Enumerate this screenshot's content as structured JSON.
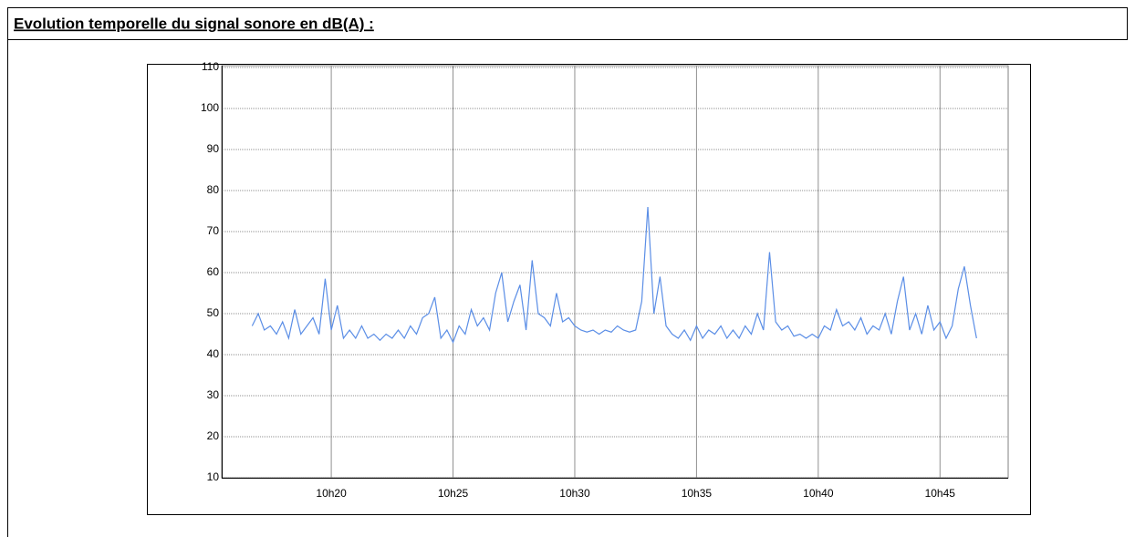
{
  "chart_data": {
    "type": "line",
    "title": "Evolution temporelle du signal sonore en dB(A) :",
    "x": [
      16.75,
      17,
      17.25,
      17.5,
      17.75,
      18,
      18.25,
      18.5,
      18.75,
      19,
      19.25,
      19.5,
      19.75,
      20,
      20.25,
      20.5,
      20.75,
      21,
      21.25,
      21.5,
      21.75,
      22,
      22.25,
      22.5,
      22.75,
      23,
      23.25,
      23.5,
      23.75,
      24,
      24.25,
      24.5,
      24.75,
      25,
      25.25,
      25.5,
      25.75,
      26,
      26.25,
      26.5,
      26.75,
      27,
      27.25,
      27.5,
      27.75,
      28,
      28.25,
      28.5,
      28.75,
      29,
      29.25,
      29.5,
      29.75,
      30,
      30.25,
      30.5,
      30.75,
      31,
      31.25,
      31.5,
      31.75,
      32,
      32.25,
      32.5,
      32.75,
      33,
      33.25,
      33.5,
      33.75,
      34,
      34.25,
      34.5,
      34.75,
      35,
      35.25,
      35.5,
      35.75,
      36,
      36.25,
      36.5,
      36.75,
      37,
      37.25,
      37.5,
      37.75,
      38,
      38.25,
      38.5,
      38.75,
      39,
      39.25,
      39.5,
      39.75,
      40,
      40.25,
      40.5,
      40.75,
      41,
      41.25,
      41.5,
      41.75,
      42,
      42.25,
      42.5,
      42.75,
      43,
      43.25,
      43.5,
      43.75,
      44,
      44.25,
      44.5,
      44.75,
      45,
      45.25,
      45.5,
      45.75,
      46,
      46.25,
      46.5
    ],
    "series": [
      {
        "name": "dB(A)",
        "color": "#5b8ee6",
        "values": [
          47,
          50,
          46,
          47,
          45,
          48,
          44,
          51,
          45,
          47,
          49,
          45,
          58.5,
          46,
          52,
          44,
          46,
          44,
          47,
          44,
          45,
          43.5,
          45,
          44,
          46,
          44,
          47,
          45,
          49,
          50,
          54,
          44,
          46,
          43,
          47,
          45,
          51,
          47,
          49,
          46,
          55,
          60,
          48,
          53,
          57,
          46,
          63,
          50,
          49,
          47,
          55,
          48,
          49,
          47,
          46,
          45.5,
          46,
          45,
          46,
          45.5,
          47,
          46,
          45.5,
          46,
          53,
          76,
          50,
          59,
          47,
          45,
          44,
          46,
          43.5,
          47,
          44,
          46,
          45,
          47,
          44,
          46,
          44,
          47,
          45,
          50,
          46,
          65,
          48,
          46,
          47,
          44.5,
          45,
          44,
          45,
          44,
          47,
          46,
          51,
          47,
          48,
          46,
          49,
          45,
          47,
          46,
          50,
          45,
          53,
          59,
          46,
          50,
          45,
          52,
          46,
          48,
          44,
          47,
          56,
          61.5,
          52,
          44
        ]
      }
    ],
    "xlim": [
      15.5,
      47.8
    ],
    "xticks": [
      {
        "value": 20,
        "label": "10h20"
      },
      {
        "value": 25,
        "label": "10h25"
      },
      {
        "value": 30,
        "label": "10h30"
      },
      {
        "value": 35,
        "label": "10h35"
      },
      {
        "value": 40,
        "label": "10h40"
      },
      {
        "value": 45,
        "label": "10h45"
      }
    ],
    "ylim": [
      10,
      110
    ],
    "yticks": [
      10,
      20,
      30,
      40,
      50,
      60,
      70,
      80,
      90,
      100,
      110
    ],
    "grid": true
  }
}
